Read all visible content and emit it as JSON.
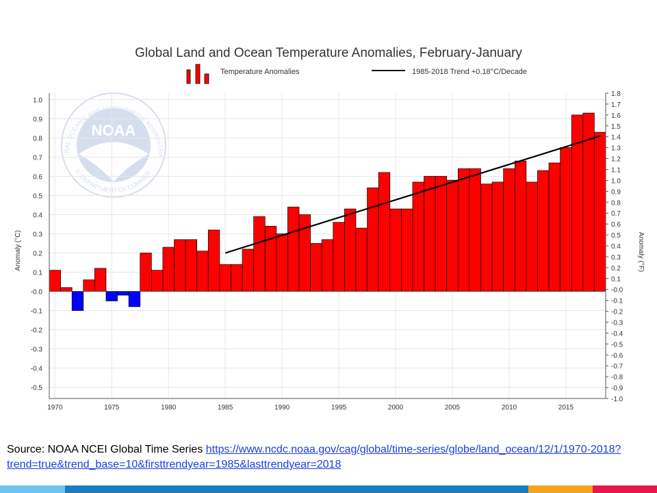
{
  "chart_data": {
    "type": "bar",
    "title": "Global Land and Ocean Temperature Anomalies, February-January",
    "legend": {
      "bars_label": "Temperature Anomalies",
      "trend_label": "1985-2018 Trend +0.18°C/Decade",
      "placement": "top"
    },
    "ylabel_left": "Anomaly (°C)",
    "ylabel_right": "Anomaly (°F)",
    "ylim": [
      -0.55,
      1.05
    ],
    "ylim_right": [
      -1.0,
      1.8
    ],
    "yticks_left": [
      "1.0",
      "0.9",
      "0.8",
      "0.7",
      "0.6",
      "0.5",
      "0.4",
      "0.3",
      "0.2",
      "0.1",
      "-0.0",
      "-0.1",
      "-0.2",
      "-0.3",
      "-0.4",
      "-0.5"
    ],
    "yticks_right": [
      "1.8",
      "1.7",
      "1.6",
      "1.5",
      "1.4",
      "1.3",
      "1.2",
      "1.1",
      "1.0",
      "0.9",
      "0.8",
      "0.7",
      "0.6",
      "0.5",
      "0.4",
      "0.3",
      "0.2",
      "0.1",
      "-0.0",
      "-0.1",
      "-0.2",
      "-0.3",
      "-0.4",
      "-0.5",
      "-0.6",
      "-0.7",
      "-0.8",
      "-0.9",
      "-1.0"
    ],
    "xticks": [
      "1970",
      "1975",
      "1980",
      "1985",
      "1990",
      "1995",
      "2000",
      "2005",
      "2010",
      "2015"
    ],
    "grid": true,
    "x": [
      1970,
      1971,
      1972,
      1973,
      1974,
      1975,
      1976,
      1977,
      1978,
      1979,
      1980,
      1981,
      1982,
      1983,
      1984,
      1985,
      1986,
      1987,
      1988,
      1989,
      1990,
      1991,
      1992,
      1993,
      1994,
      1995,
      1996,
      1997,
      1998,
      1999,
      2000,
      2001,
      2002,
      2003,
      2004,
      2005,
      2006,
      2007,
      2008,
      2009,
      2010,
      2011,
      2012,
      2013,
      2014,
      2015,
      2016,
      2017,
      2018
    ],
    "values": [
      0.11,
      0.02,
      -0.1,
      0.06,
      0.12,
      -0.05,
      -0.02,
      -0.08,
      0.2,
      0.11,
      0.23,
      0.27,
      0.27,
      0.21,
      0.32,
      0.14,
      0.14,
      0.22,
      0.39,
      0.34,
      0.3,
      0.44,
      0.4,
      0.25,
      0.27,
      0.36,
      0.43,
      0.33,
      0.54,
      0.62,
      0.43,
      0.43,
      0.57,
      0.6,
      0.6,
      0.58,
      0.64,
      0.64,
      0.56,
      0.57,
      0.64,
      0.68,
      0.57,
      0.63,
      0.67,
      0.75,
      0.92,
      0.93,
      0.83
    ],
    "trend": {
      "x": [
        1985,
        2018
      ],
      "y": [
        0.2,
        0.81
      ]
    },
    "colors": {
      "positive": "#ff0000",
      "negative": "#0000ff",
      "trend": "#000000",
      "grid": "#e6e6e6"
    }
  },
  "watermark": {
    "logo_text": "NOAA",
    "ring_text": "NATIONAL OCEANIC AND ATMOSPHERIC ADMINISTRATION",
    "ring_bottom": "U.S. DEPARTMENT OF COMMERCE"
  },
  "source": {
    "prefix": "Source: NOAA NCEI Global Time Series",
    "link": "https://www.ncdc.noaa.gov/cag/global/time-series/globe/land_ocean/12/1/1970-2018?trend=true&trend_base=10&firsttrendyear=1985&lasttrendyear=2018"
  },
  "strip_colors": [
    "#6cc4ef",
    "#1a7cc0",
    "#f7a21b",
    "#e8174b"
  ]
}
